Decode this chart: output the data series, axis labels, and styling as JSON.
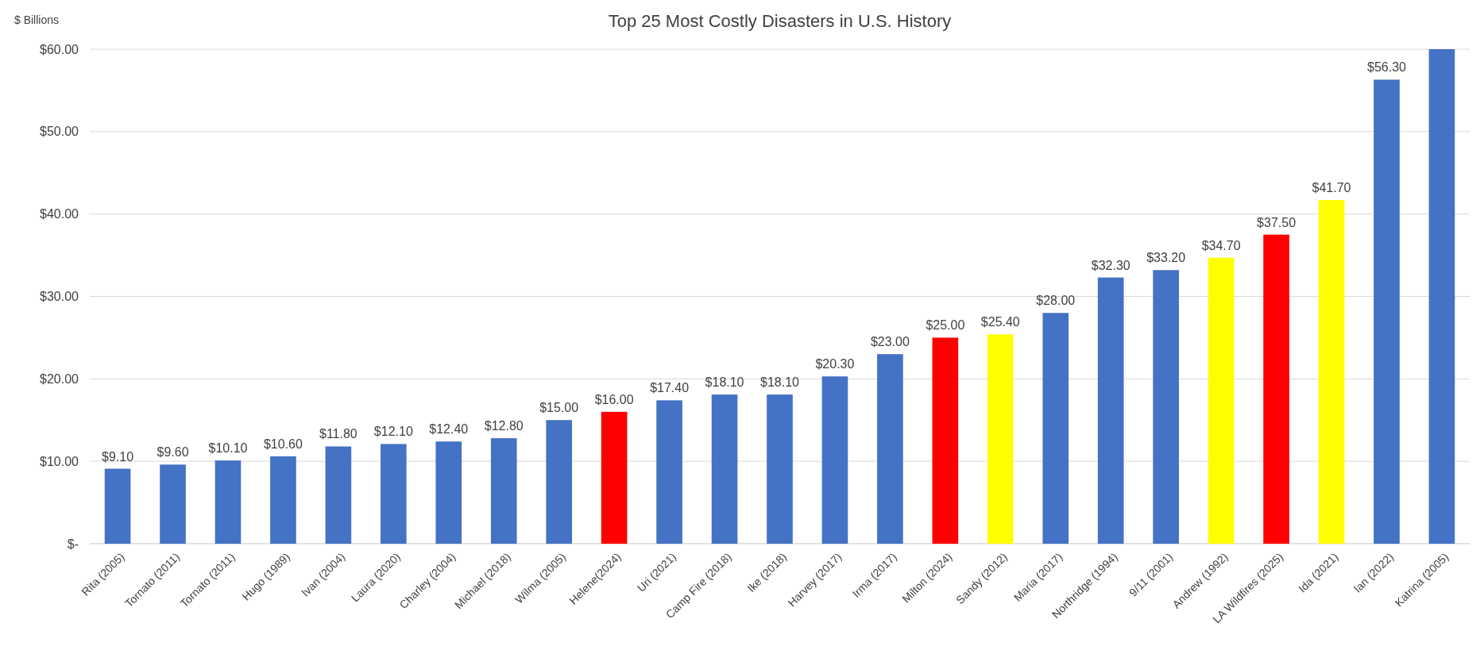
{
  "chart_data": {
    "type": "bar",
    "title": "Top 25 Most Costly Disasters in U.S. History",
    "ylabel": "$ Billions",
    "categories": [
      "Rita (2005)",
      "Tornato (2011)",
      "Tornato (2011)",
      "Hugo (1989)",
      "Ivan (2004)",
      "Laura (2020)",
      "Charley (2004)",
      "Michael (2018)",
      "Wilma (2005)",
      "Helene(2024)",
      "Uri (2021)",
      "Camp Fire (2018)",
      "Ike (2018)",
      "Harvey (2017)",
      "Irma (2017)",
      "Milton (2024)",
      "Sandy (2012)",
      "Maria (2017)",
      "Northridge (1994)",
      "9/11 (2001)",
      "Andrew (1992)",
      "LA Wildfires (2025)",
      "Ida (2021)",
      "Ian (2022)",
      "Katrina (2005)"
    ],
    "values": [
      9.1,
      9.6,
      10.1,
      10.6,
      11.8,
      12.1,
      12.4,
      12.8,
      15,
      16,
      17.4,
      18.1,
      18.1,
      20.3,
      23,
      25,
      25.4,
      28,
      32.3,
      33.2,
      34.7,
      37.5,
      41.7,
      56.3,
      60
    ],
    "colors": [
      "#4472c4",
      "#4472c4",
      "#4472c4",
      "#4472c4",
      "#4472c4",
      "#4472c4",
      "#4472c4",
      "#4472c4",
      "#4472c4",
      "#ff0000",
      "#4472c4",
      "#4472c4",
      "#4472c4",
      "#4472c4",
      "#4472c4",
      "#ff0000",
      "#ffff00",
      "#4472c4",
      "#4472c4",
      "#4472c4",
      "#ffff00",
      "#ff0000",
      "#ffff00",
      "#4472c4",
      "#4472c4"
    ],
    "value_labels": [
      "$9.10",
      "$9.60",
      "$10.10",
      "$10.60",
      "$11.80",
      "$12.10",
      "$12.40",
      "$12.80",
      "$15.00",
      "$16.00",
      "$17.40",
      "$18.10",
      "$18.10",
      "$20.30",
      "$23.00",
      "$25.00",
      "$25.40",
      "$28.00",
      "$32.30",
      "$33.20",
      "$34.70",
      "$37.50",
      "$41.70",
      "$56.30",
      null
    ],
    "ylim": [
      0,
      60
    ],
    "yticks": [
      {
        "value": 0,
        "label": "$-"
      },
      {
        "value": 10,
        "label": "$10.00"
      },
      {
        "value": 20,
        "label": "$20.00"
      },
      {
        "value": 30,
        "label": "$30.00"
      },
      {
        "value": 40,
        "label": "$40.00"
      },
      {
        "value": 50,
        "label": "$50.00"
      },
      {
        "value": 60,
        "label": "$60.00"
      }
    ],
    "grid": "y"
  }
}
